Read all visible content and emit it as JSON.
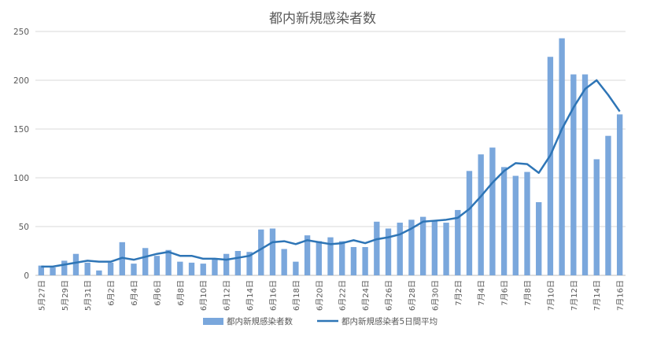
{
  "chart_data": {
    "type": "bar",
    "title": "都内新規感染者数",
    "xlabel": "",
    "ylabel": "",
    "ylim": [
      0,
      250
    ],
    "yticks": [
      0,
      50,
      100,
      150,
      200,
      250
    ],
    "grid": true,
    "legend_position": "bottom",
    "categories": [
      "5月27日",
      "5月28日",
      "5月29日",
      "5月30日",
      "5月31日",
      "6月1日",
      "6月2日",
      "6月3日",
      "6月4日",
      "6月5日",
      "6月6日",
      "6月7日",
      "6月8日",
      "6月9日",
      "6月10日",
      "6月11日",
      "6月12日",
      "6月13日",
      "6月14日",
      "6月15日",
      "6月16日",
      "6月17日",
      "6月18日",
      "6月19日",
      "6月20日",
      "6月21日",
      "6月22日",
      "6月23日",
      "6月24日",
      "6月25日",
      "6月26日",
      "6月27日",
      "6月28日",
      "6月29日",
      "6月30日",
      "7月1日",
      "7月2日",
      "7月3日",
      "7月4日",
      "7月5日",
      "7月6日",
      "7月7日",
      "7月8日",
      "7月9日",
      "7月10日",
      "7月11日",
      "7月12日",
      "7月13日",
      "7月14日",
      "7月15日",
      "7月16日"
    ],
    "x_tick_labels": [
      "5月27日",
      "5月29日",
      "5月31日",
      "6月2日",
      "6月4日",
      "6月6日",
      "6月8日",
      "6月10日",
      "6月12日",
      "6月14日",
      "6月16日",
      "6月18日",
      "6月20日",
      "6月22日",
      "6月24日",
      "6月26日",
      "6月28日",
      "6月30日",
      "7月2日",
      "7月4日",
      "7月6日",
      "7月8日",
      "7月10日",
      "7月12日",
      "7月14日",
      "7月16日"
    ],
    "series": [
      {
        "name": "都内新規感染者数",
        "type": "bar",
        "color": "#7aa7dc",
        "values": [
          10,
          8,
          15,
          22,
          13,
          5,
          13,
          34,
          12,
          28,
          20,
          26,
          14,
          13,
          12,
          17,
          22,
          25,
          24,
          47,
          48,
          27,
          14,
          41,
          35,
          39,
          35,
          29,
          29,
          55,
          48,
          54,
          57,
          60,
          56,
          54,
          67,
          107,
          124,
          131,
          111,
          102,
          106,
          75,
          224,
          243,
          206,
          206,
          119,
          143,
          165
        ]
      },
      {
        "name": "都内新規感染者5日間平均",
        "type": "line",
        "color": "#2e75b6",
        "values": [
          9,
          9,
          11,
          13,
          15,
          14,
          14,
          18,
          16,
          19,
          22,
          24,
          20,
          20,
          17,
          17,
          16,
          18,
          20,
          27,
          34,
          35,
          32,
          36,
          34,
          32,
          33,
          36,
          33,
          37,
          39,
          42,
          48,
          55,
          56,
          57,
          59,
          68,
          81,
          95,
          107,
          115,
          114,
          105,
          123,
          150,
          172,
          191,
          200,
          185,
          168
        ]
      }
    ]
  }
}
